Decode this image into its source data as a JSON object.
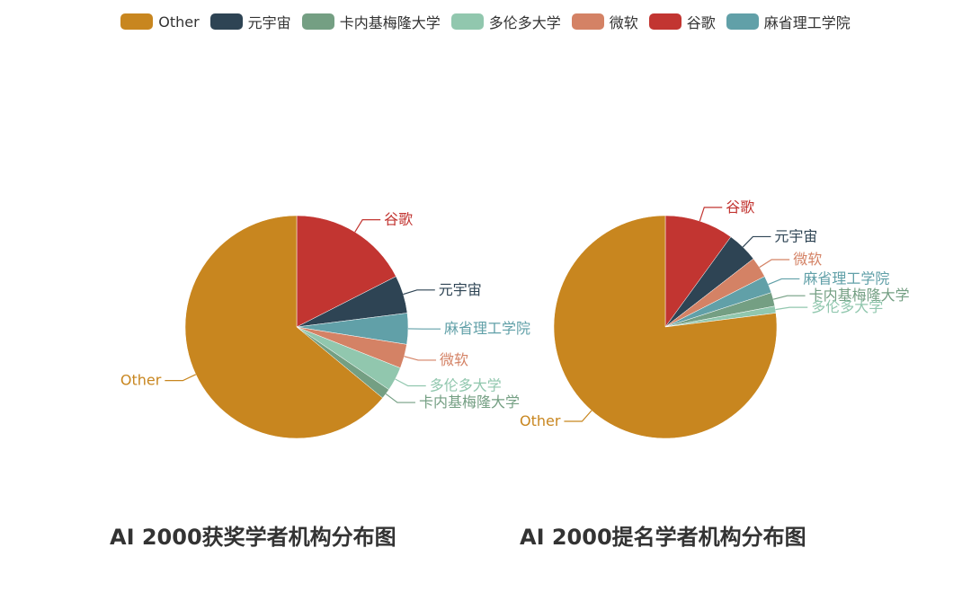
{
  "legend": {
    "items": [
      {
        "label": "Other",
        "color": "#C8861F"
      },
      {
        "label": "元宇宙",
        "color": "#2E4454"
      },
      {
        "label": "卡内基梅隆大学",
        "color": "#749F83"
      },
      {
        "label": "多伦多大学",
        "color": "#91C7AE"
      },
      {
        "label": "微软",
        "color": "#D48265"
      },
      {
        "label": "谷歌",
        "color": "#C23531"
      },
      {
        "label": "麻省理工学院",
        "color": "#61A0A8"
      }
    ]
  },
  "chart_data": [
    {
      "type": "pie",
      "title": "AI 2000获奖学者机构分布图",
      "slices": [
        {
          "label": "谷歌",
          "value": 17.5,
          "color": "#C23531"
        },
        {
          "label": "元宇宙",
          "value": 5.5,
          "color": "#2E4454"
        },
        {
          "label": "麻省理工学院",
          "value": 4.5,
          "color": "#61A0A8"
        },
        {
          "label": "微软",
          "value": 3.5,
          "color": "#D48265"
        },
        {
          "label": "多伦多大学",
          "value": 3.5,
          "color": "#91C7AE"
        },
        {
          "label": "卡内基梅隆大学",
          "value": 1.5,
          "color": "#749F83"
        },
        {
          "label": "Other",
          "value": 64.0,
          "color": "#C8861F"
        }
      ]
    },
    {
      "type": "pie",
      "title": "AI 2000提名学者机构分布图",
      "slices": [
        {
          "label": "谷歌",
          "value": 10.0,
          "color": "#C23531"
        },
        {
          "label": "元宇宙",
          "value": 4.5,
          "color": "#2E4454"
        },
        {
          "label": "微软",
          "value": 3.0,
          "color": "#D48265"
        },
        {
          "label": "麻省理工学院",
          "value": 2.5,
          "color": "#61A0A8"
        },
        {
          "label": "卡内基梅隆大学",
          "value": 2.0,
          "color": "#749F83"
        },
        {
          "label": "多伦多大学",
          "value": 1.0,
          "color": "#91C7AE"
        },
        {
          "label": "Other",
          "value": 77.0,
          "color": "#C8861F"
        }
      ]
    }
  ]
}
